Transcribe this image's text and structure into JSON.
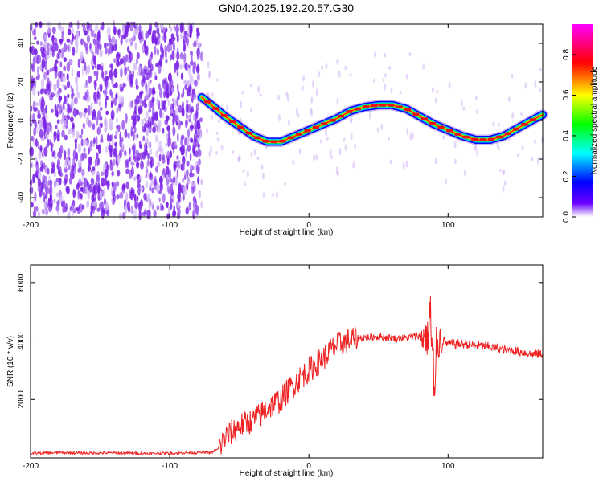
{
  "title": "GN04.2025.192.20.57.G30",
  "colors": {
    "snr_line": "#ee2222",
    "noise_scatter": "#7a22e6",
    "noise_light": "#c9a6f5"
  },
  "chart_data": [
    {
      "type": "heatmap",
      "title": "GN04.2025.192.20.57.G30",
      "xlabel": "Height of straight line (km)",
      "ylabel": "Frequency (Hz)",
      "xlim": [
        -200,
        168
      ],
      "ylim": [
        -50,
        50
      ],
      "xticks": [
        -200,
        -100,
        0,
        100
      ],
      "yticks": [
        -40,
        -20,
        0,
        20,
        40
      ],
      "noise_region_x": [
        -200,
        -77
      ],
      "ridge": {
        "x": [
          -77,
          -70,
          -60,
          -50,
          -40,
          -30,
          -20,
          -10,
          0,
          10,
          20,
          30,
          40,
          50,
          60,
          70,
          80,
          90,
          100,
          110,
          120,
          130,
          140,
          150,
          160,
          168
        ],
        "freq_hz": [
          12,
          8,
          2,
          -3,
          -8,
          -11,
          -11,
          -8,
          -5,
          -2,
          1,
          5,
          7,
          8,
          8,
          6,
          2,
          -2,
          -5,
          -8,
          -10,
          -10,
          -8,
          -4,
          0,
          3
        ]
      },
      "colorbar": {
        "label": "Normalized spectral amplitude",
        "min": 0.0,
        "max": 0.95,
        "ticks": [
          "0.0",
          "0.2",
          "0.4",
          "0.6",
          "0.8"
        ]
      }
    },
    {
      "type": "line",
      "xlabel": "Height of straight line (km)",
      "ylabel": "SNR (10 * v/v)",
      "xlim": [
        -200,
        168
      ],
      "ylim": [
        0,
        6600
      ],
      "xticks": [
        -200,
        -100,
        0,
        100
      ],
      "yticks": [
        2000,
        4000,
        6000
      ],
      "series": [
        {
          "x": [
            -200,
            -180,
            -160,
            -140,
            -120,
            -100,
            -80,
            -70,
            -65,
            -60,
            -55,
            -50,
            -45,
            -40,
            -35,
            -30,
            -25,
            -20,
            -15,
            -10,
            -5,
            0,
            5,
            10,
            15,
            20,
            25,
            30,
            35,
            40,
            50,
            60,
            70,
            75,
            80,
            85,
            88,
            90,
            92,
            95,
            100,
            110,
            120,
            130,
            140,
            150,
            160,
            168
          ],
          "y": [
            150,
            180,
            160,
            170,
            150,
            160,
            180,
            180,
            300,
            700,
            900,
            1100,
            1200,
            1300,
            1450,
            1700,
            1850,
            2000,
            2300,
            2550,
            2800,
            3000,
            3200,
            3400,
            3650,
            3850,
            3950,
            4050,
            4100,
            4120,
            4150,
            4100,
            4100,
            4150,
            4200,
            4100,
            3800,
            3600,
            3900,
            4050,
            3900,
            3900,
            3850,
            3800,
            3700,
            3650,
            3550,
            3550
          ]
        }
      ]
    }
  ]
}
